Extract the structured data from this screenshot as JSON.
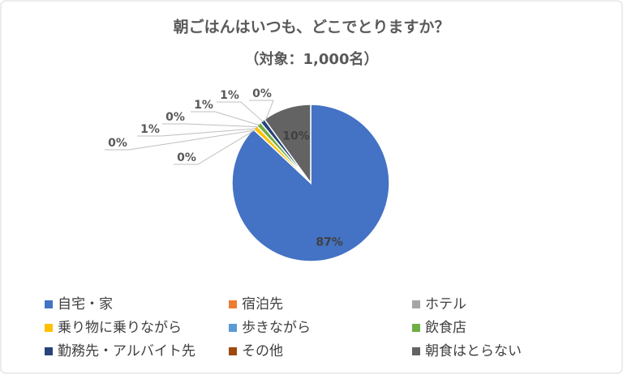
{
  "chart_data": {
    "type": "pie",
    "title": "朝ごはんはいつも、どこでとりますか？",
    "subtitle": "（対象：1,000名）",
    "categories": [
      "自宅・家",
      "宿泊先",
      "ホテル",
      "乗り物に乗りながら",
      "歩きながら",
      "飲食店",
      "勤務先・アルバイト先",
      "その他",
      "朝食はとらない"
    ],
    "values": [
      87,
      0,
      0,
      1,
      0,
      1,
      1,
      0,
      10
    ],
    "value_labels": [
      "87%",
      "0%",
      "0%",
      "1%",
      "0%",
      "1%",
      "1%",
      "0%",
      "10%"
    ],
    "colors": [
      "#4472c4",
      "#ed7d31",
      "#a5a5a5",
      "#ffc000",
      "#5b9bd5",
      "#70ad47",
      "#264478",
      "#9e480e",
      "#636363"
    ],
    "legend": "bottom"
  }
}
